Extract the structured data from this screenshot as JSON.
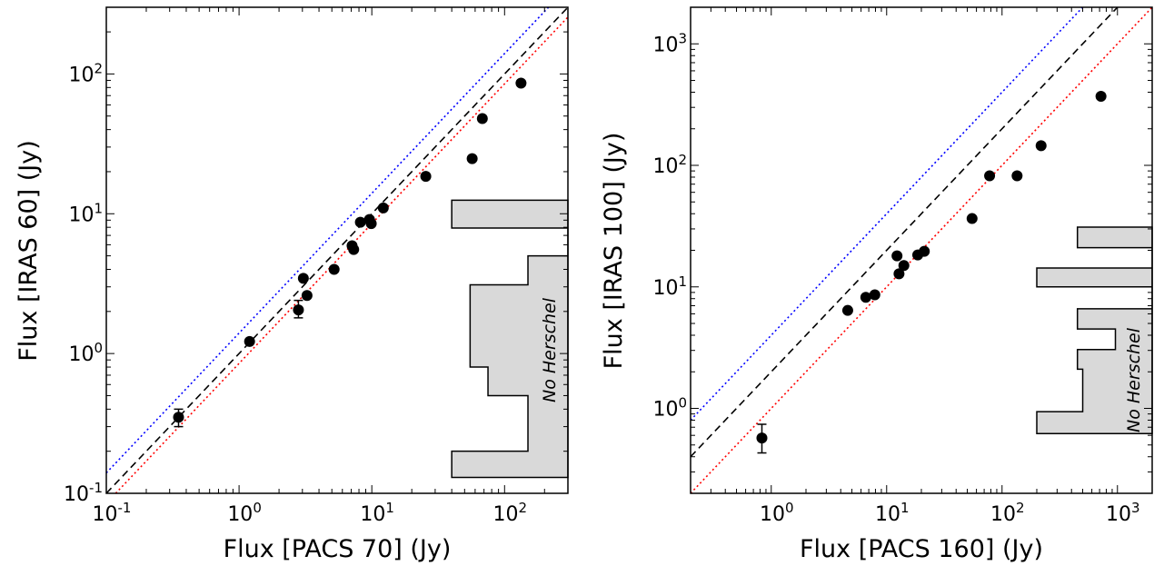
{
  "chart_data": [
    {
      "type": "scatter",
      "xlabel": "Flux [PACS 70] (Jy)",
      "ylabel": "Flux [IRAS 60] (Jy)",
      "xscale": "log",
      "yscale": "log",
      "xlim": [
        0.1,
        300
      ],
      "ylim": [
        0.1,
        300
      ],
      "x_ticks": [
        {
          "value": 0.1,
          "base": "10",
          "exp": "-1"
        },
        {
          "value": 1,
          "base": "10",
          "exp": "0"
        },
        {
          "value": 10,
          "base": "10",
          "exp": "1"
        },
        {
          "value": 100,
          "base": "10",
          "exp": "2"
        }
      ],
      "y_ticks": [
        {
          "value": 0.1,
          "base": "10",
          "exp": "-1"
        },
        {
          "value": 1,
          "base": "10",
          "exp": "0"
        },
        {
          "value": 10,
          "base": "10",
          "exp": "1"
        },
        {
          "value": 100,
          "base": "10",
          "exp": "2"
        }
      ],
      "annotation": "No Herschel",
      "colors": {
        "blue_line": "#0000ff",
        "red_line": "#ff0000",
        "dashed_line": "#000000",
        "histogram": "#d9d9d9"
      },
      "lines": [
        {
          "style": "dotted",
          "color": "blue",
          "factor": 1.4
        },
        {
          "style": "dashed",
          "color": "black",
          "factor": 1.0
        },
        {
          "style": "dotted",
          "color": "red",
          "factor": 0.85
        }
      ],
      "points": [
        {
          "x": 0.35,
          "y": 0.35,
          "yerr": [
            0.3,
            0.4
          ]
        },
        {
          "x": 1.2,
          "y": 1.22
        },
        {
          "x": 2.8,
          "y": 2.05,
          "yerr": [
            1.8,
            2.4
          ]
        },
        {
          "x": 3.05,
          "y": 3.45
        },
        {
          "x": 3.25,
          "y": 2.6
        },
        {
          "x": 5.2,
          "y": 4.0
        },
        {
          "x": 7.1,
          "y": 5.9
        },
        {
          "x": 7.3,
          "y": 5.55
        },
        {
          "x": 8.2,
          "y": 8.7
        },
        {
          "x": 9.6,
          "y": 9.1
        },
        {
          "x": 9.9,
          "y": 8.5
        },
        {
          "x": 12.2,
          "y": 11.0
        },
        {
          "x": 25.5,
          "y": 18.5
        },
        {
          "x": 57,
          "y": 24.8
        },
        {
          "x": 68,
          "y": 48
        },
        {
          "x": 133,
          "y": 86
        }
      ],
      "histogram": {
        "bins_y": [
          0.13,
          0.2,
          0.5,
          0.8,
          3.1,
          5.0,
          7.9,
          12.5
        ],
        "x_values": [
          40,
          150,
          75,
          55,
          150,
          300,
          40
        ]
      }
    },
    {
      "type": "scatter",
      "xlabel": "Flux [PACS 160] (Jy)",
      "ylabel": "Flux [IRAS 100] (Jy)",
      "xscale": "log",
      "yscale": "log",
      "xlim": [
        0.2,
        2000
      ],
      "ylim": [
        0.2,
        2000
      ],
      "x_ticks": [
        {
          "value": 1,
          "base": "10",
          "exp": "0"
        },
        {
          "value": 10,
          "base": "10",
          "exp": "1"
        },
        {
          "value": 100,
          "base": "10",
          "exp": "2"
        },
        {
          "value": 1000,
          "base": "10",
          "exp": "3"
        }
      ],
      "y_ticks": [
        {
          "value": 1,
          "base": "10",
          "exp": "0"
        },
        {
          "value": 10,
          "base": "10",
          "exp": "1"
        },
        {
          "value": 100,
          "base": "10",
          "exp": "2"
        },
        {
          "value": 1000,
          "base": "10",
          "exp": "3"
        }
      ],
      "annotation": "No Herschel",
      "colors": {
        "blue_line": "#0000ff",
        "red_line": "#ff0000",
        "dashed_line": "#000000",
        "histogram": "#d9d9d9"
      },
      "lines": [
        {
          "style": "dotted",
          "color": "blue",
          "factor": 4.0
        },
        {
          "style": "dashed",
          "color": "black",
          "factor": 2.0
        },
        {
          "style": "dotted",
          "color": "red",
          "factor": 1.0
        }
      ],
      "points": [
        {
          "x": 0.83,
          "y": 0.57,
          "yerr": [
            0.43,
            0.74
          ],
          "xerr": [
            0.78,
            0.88
          ]
        },
        {
          "x": 4.6,
          "y": 6.4
        },
        {
          "x": 6.6,
          "y": 8.2
        },
        {
          "x": 7.9,
          "y": 8.6
        },
        {
          "x": 12.3,
          "y": 18.0
        },
        {
          "x": 12.8,
          "y": 12.8
        },
        {
          "x": 14.1,
          "y": 15.0
        },
        {
          "x": 18.6,
          "y": 18.3
        },
        {
          "x": 21.2,
          "y": 19.6
        },
        {
          "x": 55,
          "y": 36.5
        },
        {
          "x": 78,
          "y": 82
        },
        {
          "x": 135,
          "y": 82
        },
        {
          "x": 218,
          "y": 145
        },
        {
          "x": 720,
          "y": 370
        }
      ],
      "histogram": {
        "bins_y": [
          0.62,
          0.94,
          2.1,
          3.05,
          4.5,
          6.6,
          10,
          14.3,
          21,
          31
        ],
        "x_values": [
          200,
          500,
          450,
          960,
          450,
          2000,
          200,
          2000,
          450
        ]
      }
    }
  ]
}
